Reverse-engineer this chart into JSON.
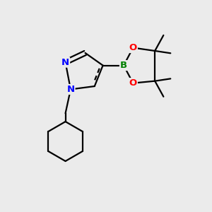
{
  "background_color": "#ebebeb",
  "atom_colors": {
    "N": "#0000ff",
    "B": "#008000",
    "O": "#ff0000",
    "C": "#000000"
  },
  "bond_color": "#000000",
  "bond_width": 1.6,
  "figure_size": [
    3.0,
    3.0
  ],
  "dpi": 100,
  "xlim": [
    0,
    10
  ],
  "ylim": [
    0,
    10
  ]
}
